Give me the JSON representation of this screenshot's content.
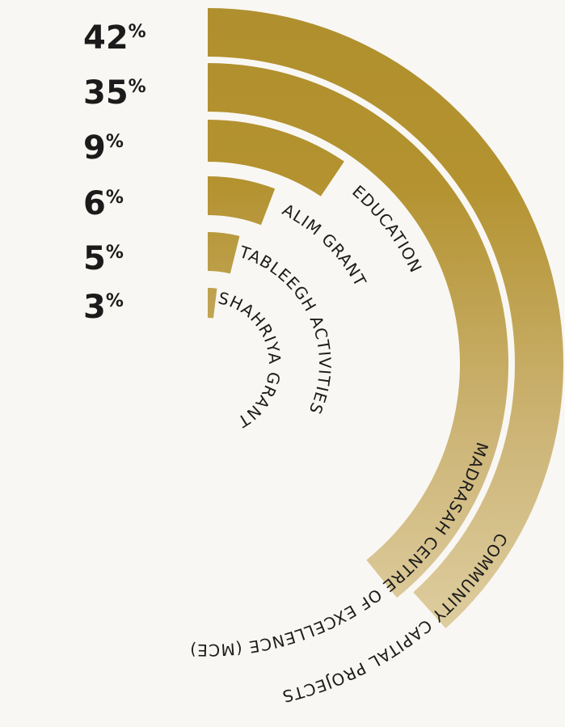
{
  "chart_data": {
    "type": "radial-bar",
    "series": [
      {
        "label": "COMMUNITY CAPITAL PROJECTS",
        "percent_label": "42",
        "value": 42
      },
      {
        "label": "MADRASAH CENTRE OF EXCELLENCE (MCE)",
        "percent_label": "35",
        "value": 35
      },
      {
        "label": "EDUCATION",
        "percent_label": "9",
        "value": 9
      },
      {
        "label": "ALIM GRANT",
        "percent_label": "6",
        "value": 6
      },
      {
        "label": "TABLEEGH ACTIVITIES",
        "percent_label": "5",
        "value": 5
      },
      {
        "label": "SHAHRIYA GRANT",
        "percent_label": "3",
        "value": 3
      }
    ],
    "percent_symbol": "%",
    "colors": {
      "gold_dark": "#b08f2e",
      "gold_light": "#e6d9b4",
      "background": "#f9f7f3",
      "text": "#1b1b1b"
    }
  }
}
